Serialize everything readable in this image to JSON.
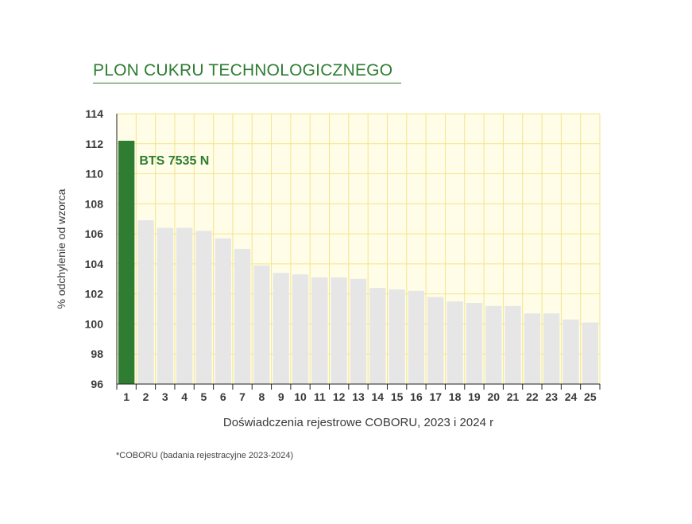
{
  "title": "PLON CUKRU TECHNOLOGICZNEGO",
  "footnote": "*COBORU (badania rejestracyjne 2023-2024)",
  "colors": {
    "highlight_bar": "#2e7d32",
    "other_bars": "#e6e6e6",
    "plot_background": "#fffde7",
    "gridline": "#f3e48a",
    "title": "#2e7d32"
  },
  "chart_data": {
    "type": "bar",
    "title": "PLON CUKRU TECHNOLOGICZNEGO",
    "xlabel": "Doświadczenia rejestrowe COBORU, 2023 i 2024 r",
    "ylabel": "% odchylenie od wzorca",
    "ylim": [
      96,
      114
    ],
    "yticks": [
      96,
      98,
      100,
      102,
      104,
      106,
      108,
      110,
      112,
      114
    ],
    "grid": true,
    "categories": [
      "1",
      "2",
      "3",
      "4",
      "5",
      "6",
      "7",
      "8",
      "9",
      "10",
      "11",
      "12",
      "13",
      "14",
      "15",
      "16",
      "17",
      "18",
      "19",
      "20",
      "21",
      "22",
      "23",
      "24",
      "25"
    ],
    "values": [
      112.2,
      106.9,
      106.4,
      106.4,
      106.2,
      105.7,
      105.0,
      103.9,
      103.4,
      103.3,
      103.1,
      103.1,
      103.0,
      102.4,
      102.3,
      102.2,
      101.8,
      101.5,
      101.4,
      101.2,
      101.2,
      100.7,
      100.7,
      100.3,
      100.1
    ],
    "highlight_index": 0,
    "annotation": "BTS 7535 N"
  }
}
